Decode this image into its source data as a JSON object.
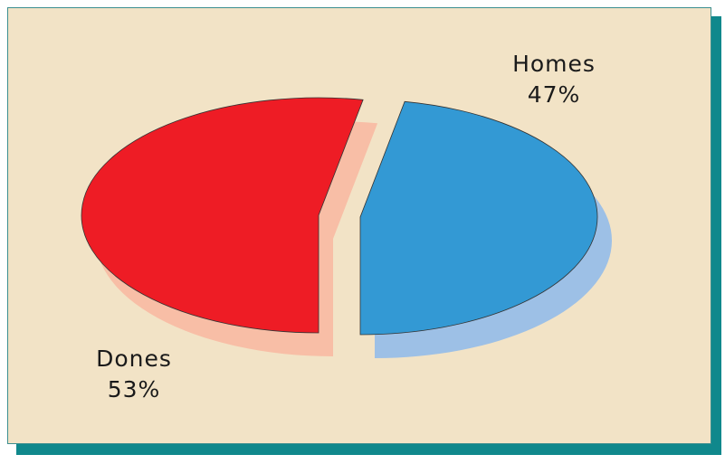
{
  "chart_data": {
    "type": "pie",
    "categories": [
      "Homes",
      "Dones"
    ],
    "values": [
      47,
      53
    ],
    "value_labels": [
      "47%",
      "53%"
    ],
    "colors": [
      "#3399d4",
      "#ee1c25"
    ]
  }
}
